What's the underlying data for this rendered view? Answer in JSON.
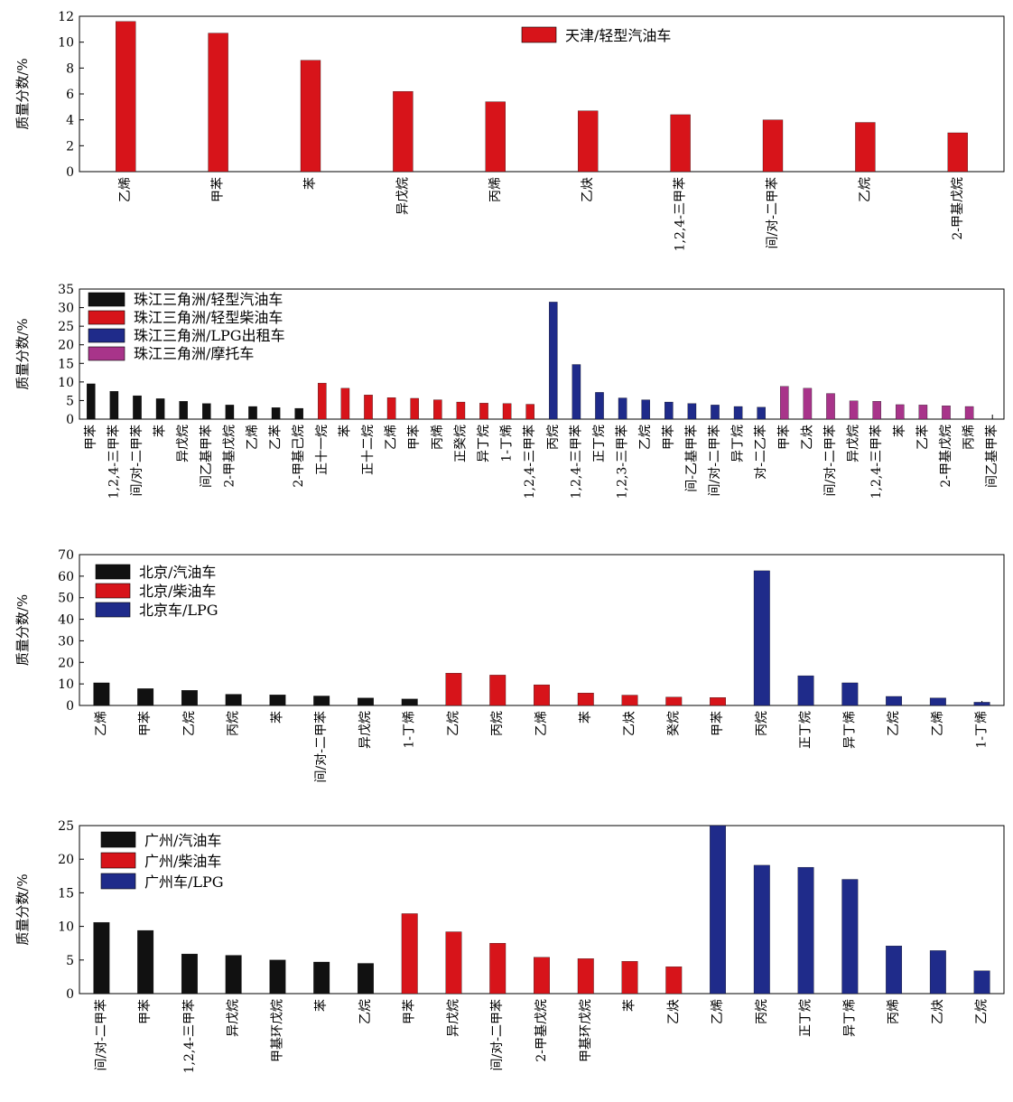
{
  "chart_data": [
    {
      "type": "bar",
      "ylabel": "质量分数/%",
      "ylim": [
        0,
        12
      ],
      "yticks": [
        0,
        2,
        4,
        6,
        8,
        10,
        12
      ],
      "legend_position": "top-right",
      "series": [
        {
          "name": "天津/轻型汽油车",
          "color": "#d7141a",
          "categories": [
            "乙烯",
            "甲苯",
            "苯",
            "异戊烷",
            "丙烯",
            "乙炔",
            "1,2,4-三甲苯",
            "间/对-二甲苯",
            "乙烷",
            "2-甲基戊烷"
          ],
          "values": [
            11.6,
            10.7,
            8.6,
            6.2,
            5.4,
            4.7,
            4.4,
            4.0,
            3.8,
            3.0
          ]
        }
      ]
    },
    {
      "type": "bar",
      "ylabel": "质量分数/%",
      "ylim": [
        0,
        35
      ],
      "yticks": [
        0,
        5,
        10,
        15,
        20,
        25,
        30,
        35
      ],
      "legend_position": "top-left",
      "series": [
        {
          "name": "珠江三角洲/轻型汽油车",
          "color": "#111111",
          "categories": [
            "甲苯",
            "1,2,4-三甲苯",
            "间/对-二甲苯",
            "苯",
            "异戊烷",
            "间乙基甲苯",
            "2-甲基戊烷",
            "乙烯",
            "乙苯",
            "2-甲基己烷"
          ],
          "values": [
            9.5,
            7.5,
            6.3,
            5.5,
            4.8,
            4.2,
            3.8,
            3.4,
            3.1,
            2.9
          ]
        },
        {
          "name": "珠江三角洲/轻型柴油车",
          "color": "#d7141a",
          "categories": [
            "正十一烷",
            "苯",
            "正十二烷",
            "乙烯",
            "甲苯",
            "丙烯",
            "正癸烷",
            "异丁烷",
            "1-丁烯",
            "1,2,4-三甲苯"
          ],
          "values": [
            9.7,
            8.3,
            6.5,
            5.8,
            5.6,
            5.2,
            4.6,
            4.3,
            4.2,
            4.0
          ]
        },
        {
          "name": "珠江三角洲/LPG出租车",
          "color": "#1f2b8a",
          "categories": [
            "丙烷",
            "1,2,4-三甲苯",
            "正丁烷",
            "1,2,3-三甲苯",
            "乙烷",
            "甲苯",
            "间-乙基甲苯",
            "间/对-二甲苯",
            "异丁烷",
            "对-二乙苯"
          ],
          "values": [
            31.5,
            14.7,
            7.2,
            5.7,
            5.2,
            4.6,
            4.2,
            3.8,
            3.4,
            3.2
          ]
        },
        {
          "name": "珠江三角洲/摩托车",
          "color": "#a8348a",
          "categories": [
            "甲苯",
            "乙炔",
            "间/对-二甲苯",
            "异戊烷",
            "1,2,4-三甲苯",
            "苯",
            "乙苯",
            "2-甲基戊烷",
            "丙烯",
            "间乙基甲苯"
          ],
          "values": [
            8.8,
            8.3,
            6.9,
            4.9,
            4.8,
            3.9,
            3.8,
            3.6,
            3.4,
            0.0
          ]
        }
      ]
    },
    {
      "type": "bar",
      "ylabel": "质量分数/%",
      "ylim": [
        0,
        70
      ],
      "yticks": [
        0,
        10,
        20,
        30,
        40,
        50,
        60,
        70
      ],
      "legend_position": "top-left",
      "series": [
        {
          "name": "北京/汽油车",
          "color": "#111111",
          "categories": [
            "乙烯",
            "甲苯",
            "乙烷",
            "丙烷",
            "苯",
            "间/对-二甲苯",
            "异戊烷",
            "1-丁烯"
          ],
          "values": [
            10.5,
            7.8,
            7.0,
            5.2,
            4.9,
            4.4,
            3.5,
            3.0
          ]
        },
        {
          "name": "北京/柴油车",
          "color": "#d7141a",
          "categories": [
            "乙烷",
            "丙烷",
            "乙烯",
            "苯",
            "乙炔",
            "癸烷",
            "甲苯"
          ],
          "values": [
            15.0,
            14.1,
            9.6,
            5.8,
            4.8,
            3.9,
            3.7
          ]
        },
        {
          "name": "北京车/LPG",
          "color": "#1f2b8a",
          "categories": [
            "丙烷",
            "正丁烷",
            "异丁烯",
            "乙烷",
            "乙烯",
            "1-丁烯"
          ],
          "values": [
            62.5,
            13.8,
            10.5,
            4.2,
            3.5,
            1.5
          ]
        }
      ]
    },
    {
      "type": "bar",
      "ylabel": "质量分数/%",
      "ylim": [
        0,
        25
      ],
      "yticks": [
        0,
        5,
        10,
        15,
        20,
        25
      ],
      "legend_position": "top-left",
      "series": [
        {
          "name": "广州/汽油车",
          "color": "#111111",
          "categories": [
            "间/对-二甲苯",
            "甲苯",
            "1,2,4-三甲苯",
            "异戊烷",
            "甲基环戊烷",
            "苯",
            "乙烷"
          ],
          "values": [
            10.6,
            9.4,
            5.9,
            5.7,
            5.0,
            4.7,
            4.5
          ]
        },
        {
          "name": "广州/柴油车",
          "color": "#d7141a",
          "categories": [
            "甲苯",
            "异戊烷",
            "间/对-二甲苯",
            "2-甲基戊烷",
            "甲基环戊烷",
            "苯",
            "乙炔"
          ],
          "values": [
            11.9,
            9.2,
            7.5,
            5.4,
            5.2,
            4.8,
            4.0
          ]
        },
        {
          "name": "广州车/LPG",
          "color": "#1f2b8a",
          "categories": [
            "乙烯",
            "丙烷",
            "正丁烷",
            "异丁烯",
            "丙烯",
            "乙炔",
            "乙烷"
          ],
          "values": [
            25.0,
            19.1,
            18.8,
            17.0,
            7.1,
            6.4,
            3.4
          ]
        }
      ]
    }
  ]
}
